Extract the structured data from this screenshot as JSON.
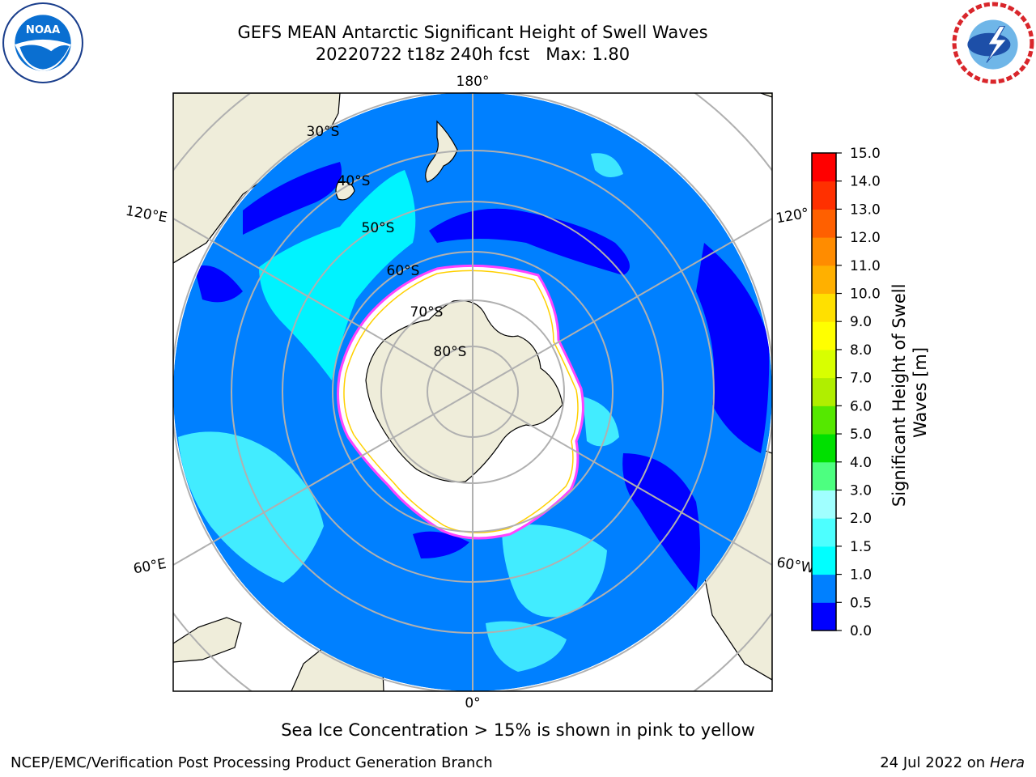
{
  "title_line1": "GEFS MEAN Antarctic Significant Height of Swell Waves",
  "title_line2": "20220722 t18z 240h fcst   Max: 1.80",
  "map": {
    "projection": "south-polar-stereographic",
    "meridian_labels": {
      "top": "180°",
      "bottom": "0°",
      "left_upper": "120°E",
      "left_lower": "60°E",
      "right_upper": "120°",
      "right_lower": "60°W"
    },
    "parallel_labels": [
      "30°S",
      "40°S",
      "50°S",
      "60°S",
      "70°S",
      "80°S"
    ],
    "colors": {
      "land": "#efedda",
      "ocean_low": "#0080ff",
      "ocean_min": "#0000ff",
      "swell_mid": "#00ffff",
      "swell_high": "#4dffff",
      "ice_edge": "#ff44ff",
      "grid": "#b0b0b0"
    }
  },
  "colorbar": {
    "label": "Significant Height of Swell Waves [m]",
    "label_line1": "Significant Height of Swell",
    "label_line2": "Waves [m]",
    "tick_labels": [
      "0.0",
      "0.5",
      "1.0",
      "1.5",
      "2.0",
      "3.0",
      "4.0",
      "5.0",
      "6.0",
      "7.0",
      "8.0",
      "9.0",
      "10.0",
      "11.0",
      "12.0",
      "13.0",
      "14.0",
      "15.0"
    ],
    "colors": [
      "#0000ff",
      "#0080ff",
      "#00ffff",
      "#4dffff",
      "#a0ffff",
      "#4dff80",
      "#00e000",
      "#55e800",
      "#b0ee00",
      "#d8ff00",
      "#ffff00",
      "#ffe000",
      "#ffb000",
      "#ff8c00",
      "#ff6000",
      "#ff3000",
      "#ff0000"
    ]
  },
  "note": "Sea Ice Concentration > 15% is shown in pink to yellow",
  "footer_left": "NCEP/EMC/Verification Post Processing Product Generation Branch",
  "footer_right_prefix": "24 Jul 2022 on ",
  "footer_right_host": "Hera"
}
